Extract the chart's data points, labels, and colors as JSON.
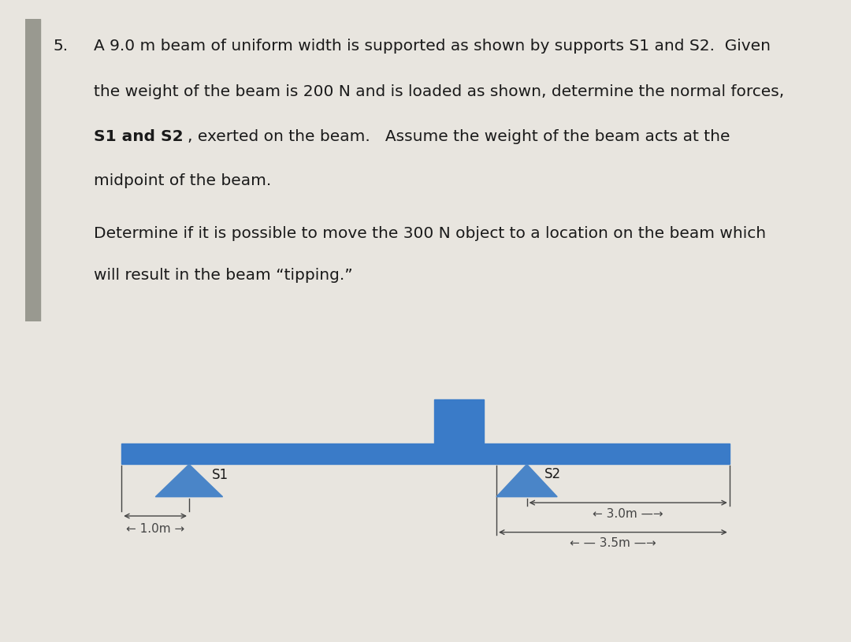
{
  "bg_overall": "#e8e5df",
  "bg_top": "#d4d0c8",
  "bg_bottom": "#ccc8be",
  "beam_color": "#3a7bc8",
  "support_color": "#4a85c8",
  "box_color": "#3a7bc8",
  "text_color": "#1a1a1a",
  "dim_color": "#444444",
  "accent_line_color": "#999990",
  "label_S1": "S1",
  "label_S2": "S2",
  "dim1_text": "← 1.0m →",
  "dim2_text": "←—3.0m—→",
  "dim3_text": "←——3.5m——→"
}
